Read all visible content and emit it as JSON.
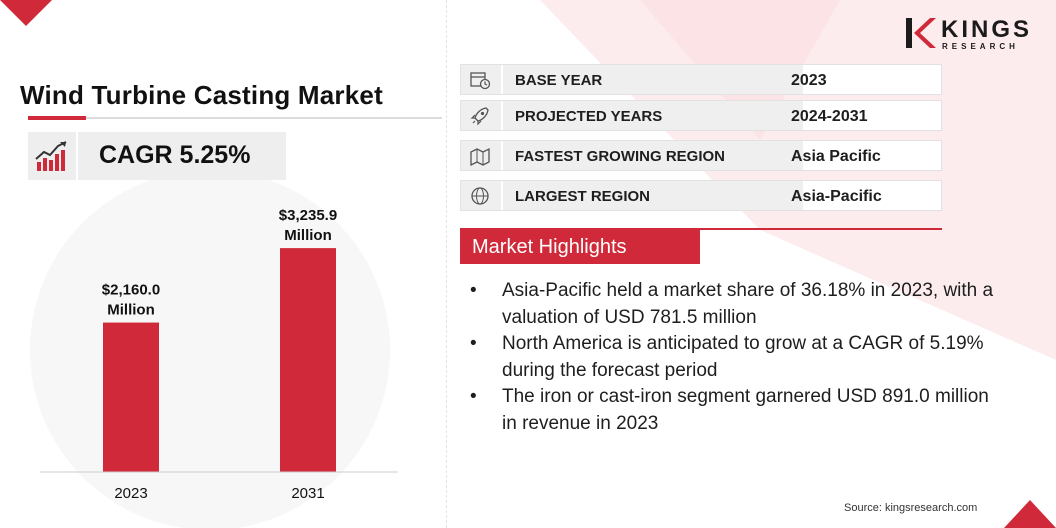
{
  "brand": {
    "name": "KINGS",
    "subtitle": "RESEARCH",
    "accent_color": "#d02a3a"
  },
  "title": "Wind Turbine Casting Market",
  "cagr": {
    "text": "CAGR 5.25%",
    "icon": "growth-chart-icon"
  },
  "info_table": [
    {
      "label": "BASE YEAR",
      "value": "2023",
      "icon": "calendar-clock-icon"
    },
    {
      "label": "PROJECTED YEARS",
      "value": "2024-2031",
      "icon": "rocket-icon"
    },
    {
      "label": "FASTEST GROWING REGION",
      "value": "Asia Pacific",
      "icon": "region-map-icon"
    },
    {
      "label": "LARGEST REGION",
      "value": "Asia-Pacific",
      "icon": "globe-icon"
    }
  ],
  "highlights": {
    "heading": "Market Highlights",
    "items": [
      "Asia-Pacific held a market share of 36.18% in 2023, with a valuation of USD 781.5 million",
      "North America is anticipated to grow at a CAGR of 5.19% during the forecast period",
      "The iron or cast-iron segment garnered USD 891.0 million in revenue in 2023"
    ]
  },
  "source": "Source: kingsresearch.com",
  "chart_data": {
    "type": "bar",
    "categories": [
      "2023",
      "2031"
    ],
    "values": [
      2160.0,
      3235.9
    ],
    "data_labels": [
      [
        "$2,160.0",
        "Million"
      ],
      [
        "$3,235.9",
        "Million"
      ]
    ],
    "bar_color": "#d02a3a",
    "ylim": [
      0,
      3700
    ],
    "grid": false,
    "legend": "none"
  }
}
